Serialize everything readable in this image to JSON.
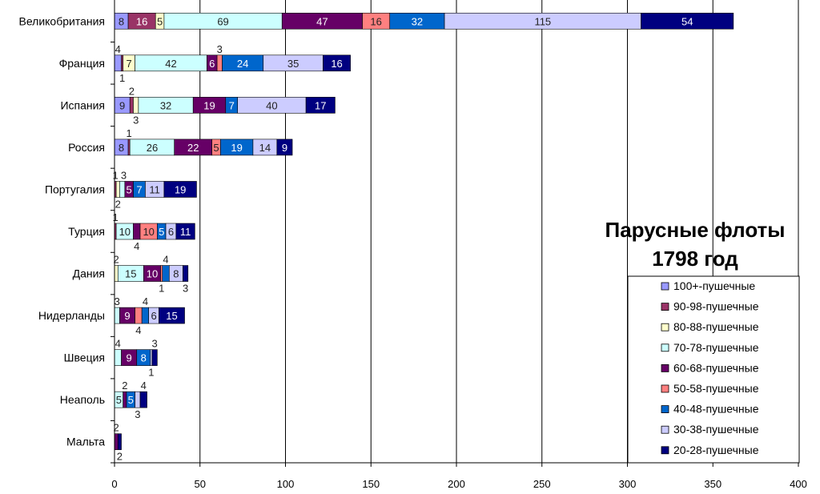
{
  "chart_data": {
    "type": "bar",
    "orientation": "horizontal",
    "stacked": true,
    "title": "Парусные флоты",
    "subtitle": "1798 год",
    "xlabel": "",
    "ylabel": "",
    "xlim": [
      0,
      400
    ],
    "xticks": [
      0,
      50,
      100,
      150,
      200,
      250,
      300,
      350,
      400
    ],
    "grid": true,
    "legend_position": "bottom-right",
    "categories": [
      "Великобритания",
      "Франция",
      "Испания",
      "Россия",
      "Португалия",
      "Турция",
      "Дания",
      "Нидерланды",
      "Швеция",
      "Неаполь",
      "Мальта"
    ],
    "series": [
      {
        "name": "100+-пушечные",
        "color": "#9999ff",
        "values": [
          8,
          4,
          9,
          8,
          0,
          0,
          0,
          0,
          0,
          0,
          0
        ]
      },
      {
        "name": "90-98-пушечные",
        "color": "#993366",
        "values": [
          16,
          1,
          2,
          1,
          1,
          1,
          0,
          0,
          0,
          0,
          0
        ]
      },
      {
        "name": "80-88-пушечные",
        "color": "#ffffcc",
        "values": [
          5,
          7,
          3,
          0,
          2,
          0,
          2,
          0,
          0,
          0,
          0
        ]
      },
      {
        "name": "70-78-пушечные",
        "color": "#ccffff",
        "values": [
          69,
          42,
          32,
          26,
          3,
          10,
          15,
          3,
          4,
          5,
          0
        ]
      },
      {
        "name": "60-68-пушечные",
        "color": "#660066",
        "values": [
          47,
          6,
          19,
          22,
          5,
          4,
          10,
          9,
          9,
          2,
          2
        ]
      },
      {
        "name": "50-58-пушечные",
        "color": "#ff8080",
        "values": [
          16,
          3,
          0,
          5,
          0,
          10,
          1,
          4,
          0,
          0,
          0
        ]
      },
      {
        "name": "40-48-пушечные",
        "color": "#0066cc",
        "values": [
          32,
          24,
          7,
          19,
          7,
          5,
          4,
          4,
          8,
          5,
          0
        ]
      },
      {
        "name": "30-38-пушечные",
        "color": "#ccccff",
        "values": [
          115,
          35,
          40,
          14,
          11,
          6,
          8,
          6,
          1,
          3,
          0
        ]
      },
      {
        "name": "20-28-пушечные",
        "color": "#000080",
        "values": [
          54,
          16,
          17,
          9,
          19,
          11,
          3,
          15,
          3,
          4,
          2
        ]
      }
    ]
  }
}
